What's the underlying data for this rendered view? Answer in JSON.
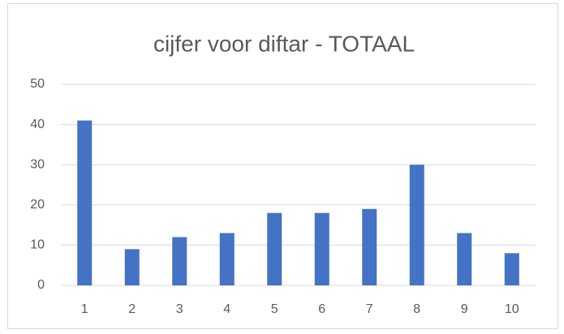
{
  "chart_data": {
    "type": "bar",
    "title": "cijfer voor diftar - TOTAAL",
    "categories": [
      "1",
      "2",
      "3",
      "4",
      "5",
      "6",
      "7",
      "8",
      "9",
      "10"
    ],
    "values": [
      41,
      9,
      12,
      13,
      18,
      18,
      19,
      30,
      13,
      8
    ],
    "color": "#4472c4",
    "ylim": [
      0,
      50
    ],
    "yticks": [
      0,
      10,
      20,
      30,
      40,
      50
    ],
    "grid": true
  }
}
